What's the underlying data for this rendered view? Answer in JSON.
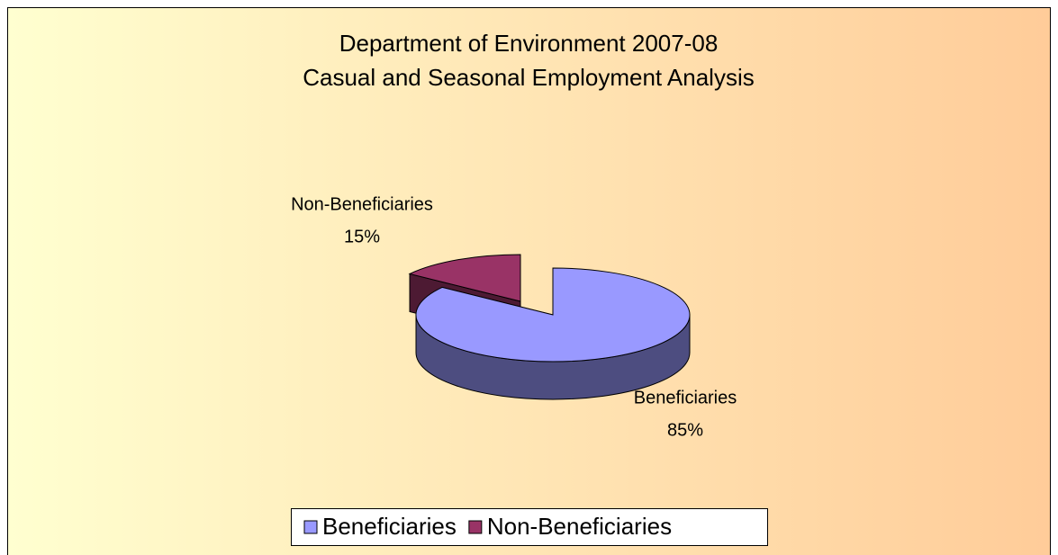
{
  "chart_data": {
    "type": "pie3d",
    "title": "Department of Environment 2007-08",
    "subtitle": "Casual and Seasonal Employment Analysis",
    "categories": [
      "Beneficiaries",
      "Non-Beneficiaries"
    ],
    "values": [
      85,
      15
    ],
    "value_labels": [
      "85%",
      "15%"
    ],
    "colors": [
      "#9999ff",
      "#993366"
    ],
    "legend": "bottom"
  }
}
